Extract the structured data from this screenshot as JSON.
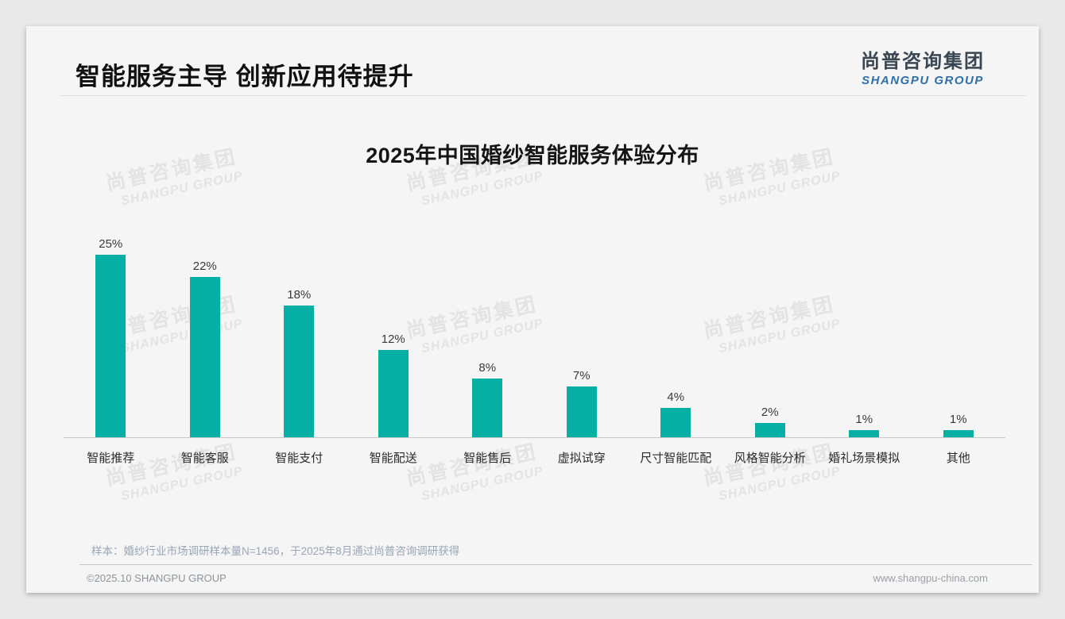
{
  "slide": {
    "title": "智能服务主导 创新应用待提升",
    "logo": {
      "cn": "尚普咨询集团",
      "en": "SHANGPU GROUP"
    },
    "watermark": {
      "cn": "尚普咨询集团",
      "en": "SHANGPU GROUP"
    },
    "footnote": "样本：婚纱行业市场调研样本量N=1456，于2025年8月通过尚普咨询调研获得",
    "footer": {
      "copyright": "©2025.10 SHANGPU GROUP",
      "website": "www.shangpu-china.com"
    },
    "colors": {
      "bar": "#05afa4",
      "logo_cn": "#3b4653",
      "logo_en": "#2f6ea8",
      "page_bg": "#e9e9e9",
      "card_bg": "#f4f5f4"
    }
  },
  "chart_data": {
    "type": "bar",
    "title": "2025年中国婚纱智能服务体验分布",
    "categories": [
      "智能推荐",
      "智能客服",
      "智能支付",
      "智能配送",
      "智能售后",
      "虚拟试穿",
      "尺寸智能匹配",
      "风格智能分析",
      "婚礼场景模拟",
      "其他"
    ],
    "values": [
      25,
      22,
      18,
      12,
      8,
      7,
      4,
      2,
      1,
      1
    ],
    "unit": "%",
    "value_label_format": "{v}%",
    "xlabel": "",
    "ylabel": "",
    "ylim": [
      0,
      27
    ],
    "grid": false,
    "legend": "none",
    "bar_color": "#05afa4"
  }
}
